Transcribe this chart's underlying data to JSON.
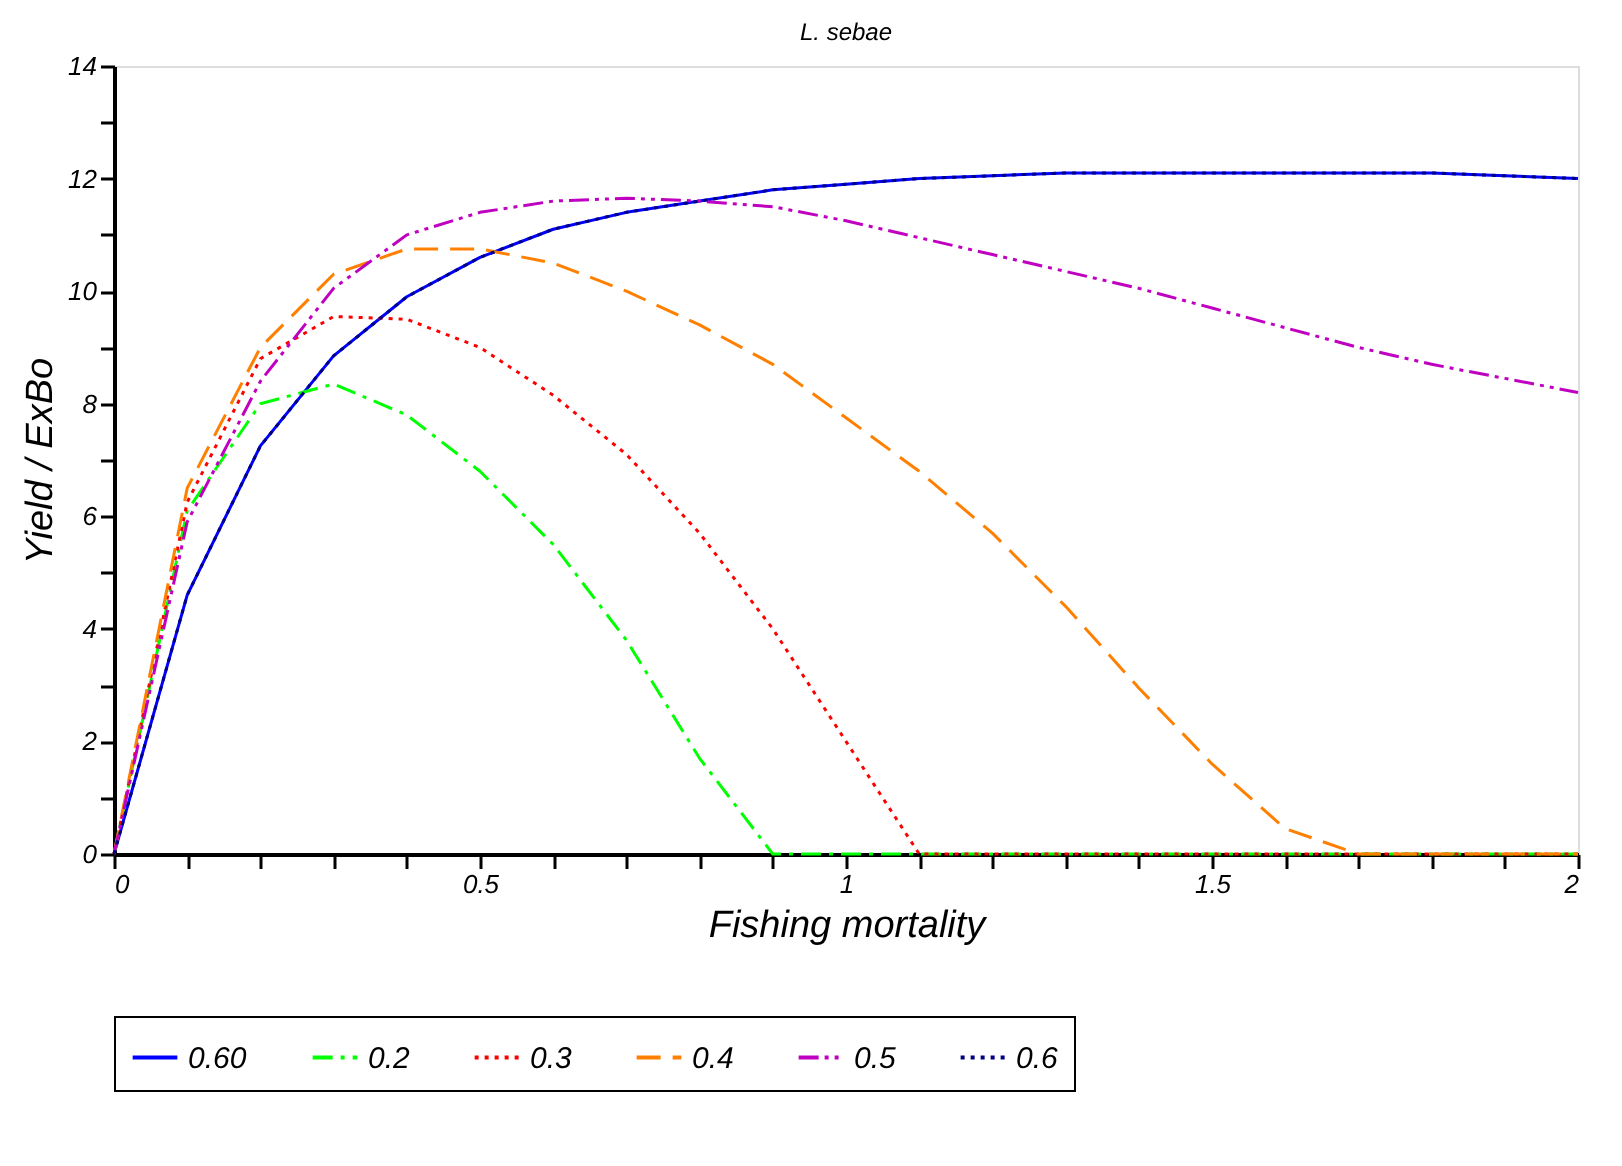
{
  "chart_data": {
    "type": "line",
    "title": "L. sebae",
    "xlabel": "Fishing mortality",
    "ylabel": "Yield / ExBo",
    "x": [
      0,
      0.1,
      0.2,
      0.3,
      0.4,
      0.5,
      0.6,
      0.7,
      0.8,
      0.9,
      1.0,
      1.1,
      1.2,
      1.3,
      1.4,
      1.5,
      1.6,
      1.7,
      1.8,
      1.9,
      2.0
    ],
    "series": [
      {
        "name": "0.60",
        "color": "#0000ff",
        "line_style": "solid",
        "values": [
          0,
          4.6,
          7.25,
          8.85,
          9.9,
          10.6,
          11.1,
          11.4,
          11.6,
          11.8,
          11.9,
          12.0,
          12.05,
          12.1,
          12.1,
          12.1,
          12.1,
          12.1,
          12.1,
          12.05,
          12.0
        ]
      },
      {
        "name": "0.2",
        "color": "#00ff00",
        "line_style": "dashdot",
        "values": [
          0,
          6.1,
          8.0,
          8.35,
          7.8,
          6.8,
          5.5,
          3.8,
          1.7,
          0,
          0,
          0,
          0,
          0,
          0,
          0,
          0,
          0,
          0,
          0,
          0
        ]
      },
      {
        "name": "0.3",
        "color": "#ff0000",
        "line_style": "dotted",
        "values": [
          0,
          6.25,
          8.8,
          9.55,
          9.5,
          9.0,
          8.15,
          7.1,
          5.7,
          4.0,
          2.0,
          0,
          0,
          0,
          0,
          0,
          0,
          0,
          0,
          0,
          0
        ]
      },
      {
        "name": "0.4",
        "color": "#ff8000",
        "line_style": "dashed",
        "values": [
          0,
          6.5,
          9.0,
          10.3,
          10.75,
          10.75,
          10.5,
          10.0,
          9.4,
          8.7,
          7.75,
          6.8,
          5.7,
          4.4,
          2.95,
          1.6,
          0.45,
          0,
          0,
          0,
          0
        ]
      },
      {
        "name": "0.5",
        "color": "#c000c0",
        "line_style": "dashdotdot",
        "values": [
          0,
          5.9,
          8.4,
          10.05,
          11.0,
          11.4,
          11.6,
          11.65,
          11.6,
          11.5,
          11.25,
          10.95,
          10.65,
          10.35,
          10.05,
          9.7,
          9.35,
          9.0,
          8.7,
          8.45,
          8.2
        ]
      },
      {
        "name": "0.6",
        "color": "#000080",
        "line_style": "dotted",
        "values": [
          0,
          4.6,
          7.25,
          8.85,
          9.9,
          10.6,
          11.1,
          11.4,
          11.6,
          11.8,
          11.9,
          12.0,
          12.05,
          12.1,
          12.1,
          12.1,
          12.1,
          12.1,
          12.1,
          12.05,
          12.0
        ]
      }
    ],
    "xlim": [
      0,
      2
    ],
    "ylim": [
      0,
      14
    ],
    "xticks": [
      0,
      {
        "value": 0.1,
        "label": null
      },
      {
        "value": 0.2,
        "label": null
      },
      {
        "value": 0.3,
        "label": null
      },
      {
        "value": 0.4,
        "label": null
      },
      0.5,
      {
        "value": 0.6,
        "label": null
      },
      {
        "value": 0.7,
        "label": null
      },
      {
        "value": 0.8,
        "label": null
      },
      {
        "value": 0.9,
        "label": null
      },
      1,
      {
        "value": 1.1,
        "label": null
      },
      {
        "value": 1.2,
        "label": null
      },
      {
        "value": 1.3,
        "label": null
      },
      {
        "value": 1.4,
        "label": null
      },
      1.5,
      {
        "value": 1.6,
        "label": null
      },
      {
        "value": 1.7,
        "label": null
      },
      {
        "value": 1.8,
        "label": null
      },
      {
        "value": 1.9,
        "label": null
      },
      2
    ],
    "yticks": [
      0,
      {
        "value": 1,
        "label": null
      },
      2,
      {
        "value": 3,
        "label": null
      },
      4,
      {
        "value": 5,
        "label": null
      },
      6,
      {
        "value": 7,
        "label": null
      },
      8,
      {
        "value": 9,
        "label": null
      },
      10,
      {
        "value": 11,
        "label": null
      },
      12,
      {
        "value": 13,
        "label": null
      },
      14
    ],
    "grid": false,
    "legend": "bottom",
    "marker": "none"
  }
}
